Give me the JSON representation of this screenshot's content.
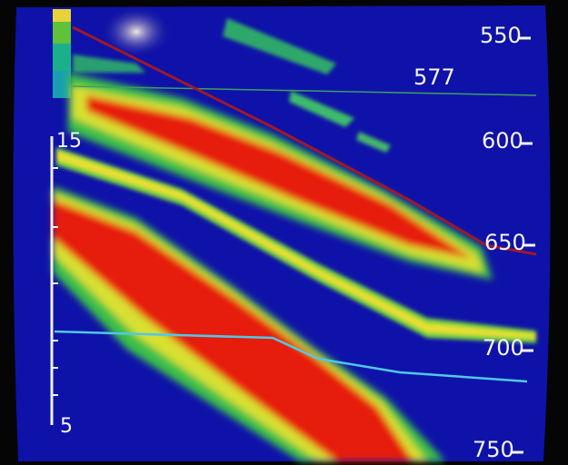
{
  "depth_scale": {
    "labels": [
      "550",
      "600",
      "650",
      "700",
      "750"
    ]
  },
  "readout": "577",
  "left_scale": {
    "labels": [
      "15",
      "5"
    ]
  }
}
